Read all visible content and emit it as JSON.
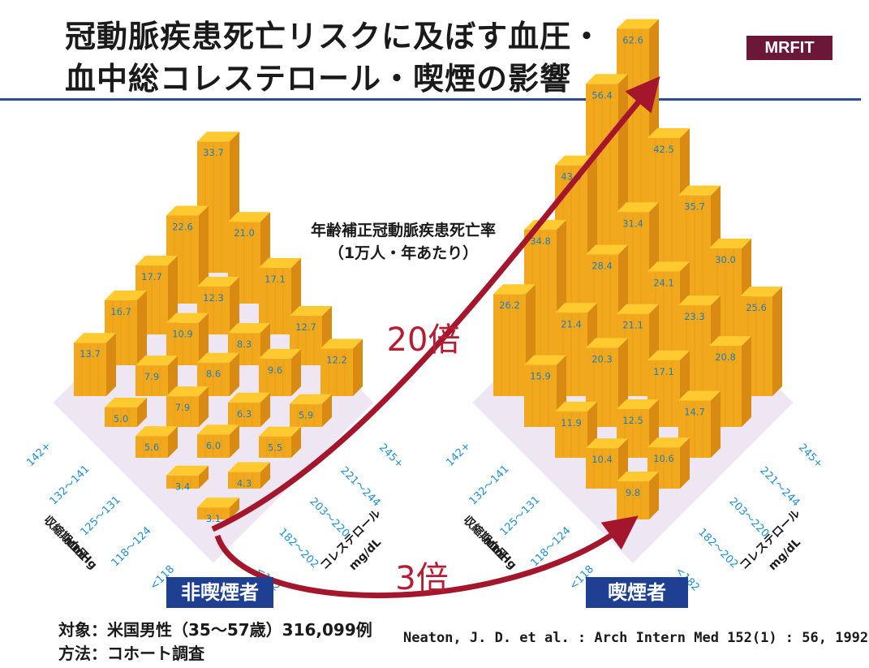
{
  "title_line1": "冠動脈疾患死亡リスクに及ぼす血圧・",
  "title_line2": "血中総コレステロール・喫煙の影響",
  "badge": "MRFIT",
  "subtitle_line1": "年齢補正冠動脈疾患死亡率",
  "subtitle_line2": "（1万人・年あたり）",
  "ratio_smokers": "20倍",
  "ratio_low": "3倍",
  "nonsmoker_label": "非喫煙者",
  "smoker_label": "喫煙者",
  "note_subject": "対象：米国男性（35〜57歳）316,099例",
  "note_method": "方法：コホート調査",
  "citation": "Neaton, J. D. et al. : Arch Intern Med 152(1) : 56, 1992",
  "colors": {
    "bar_front": "#f2a81c",
    "bar_side": "#d98a12",
    "bar_top": "#ffc930",
    "value_text": "#1d7fb9",
    "axis_text": "#1d8fd6",
    "arrow": "#a3162c",
    "rule": "#2c4f8c",
    "badge_bg": "#6b1838",
    "label_bg": "#1f3f93"
  },
  "chart_data": {
    "type": "3d-bar",
    "title": "年齢補正冠動脈疾患死亡率（1万人・年あたり）",
    "x_axis_label": "収縮期血圧 mmHg",
    "y_axis_label": "コレステロール mg/dL",
    "bp_categories": [
      "<118",
      "118〜124",
      "125〜131",
      "132〜141",
      "142+"
    ],
    "chol_categories": [
      "<182",
      "182〜202",
      "203〜220",
      "221〜244",
      "245+"
    ],
    "panels": [
      {
        "name": "非喫煙者",
        "values": [
          [
            3.1,
            4.3,
            5.5,
            5.9,
            12.2
          ],
          [
            3.4,
            6.0,
            6.3,
            9.6,
            12.7
          ],
          [
            5.6,
            7.9,
            8.6,
            8.3,
            17.1
          ],
          [
            5.0,
            7.9,
            10.9,
            12.3,
            21.0
          ],
          [
            13.7,
            16.7,
            17.7,
            22.6,
            33.7
          ]
        ]
      },
      {
        "name": "喫煙者",
        "values": [
          [
            9.8,
            10.6,
            14.7,
            20.8,
            25.6
          ],
          [
            10.4,
            12.5,
            17.1,
            23.3,
            30.0
          ],
          [
            11.9,
            20.3,
            21.1,
            24.1,
            35.7
          ],
          [
            15.9,
            21.4,
            28.4,
            31.4,
            42.5
          ],
          [
            26.2,
            34.8,
            43.4,
            56.4,
            62.6
          ]
        ]
      }
    ],
    "annotations": [
      "20倍",
      "3倍"
    ],
    "zmax": 65
  }
}
